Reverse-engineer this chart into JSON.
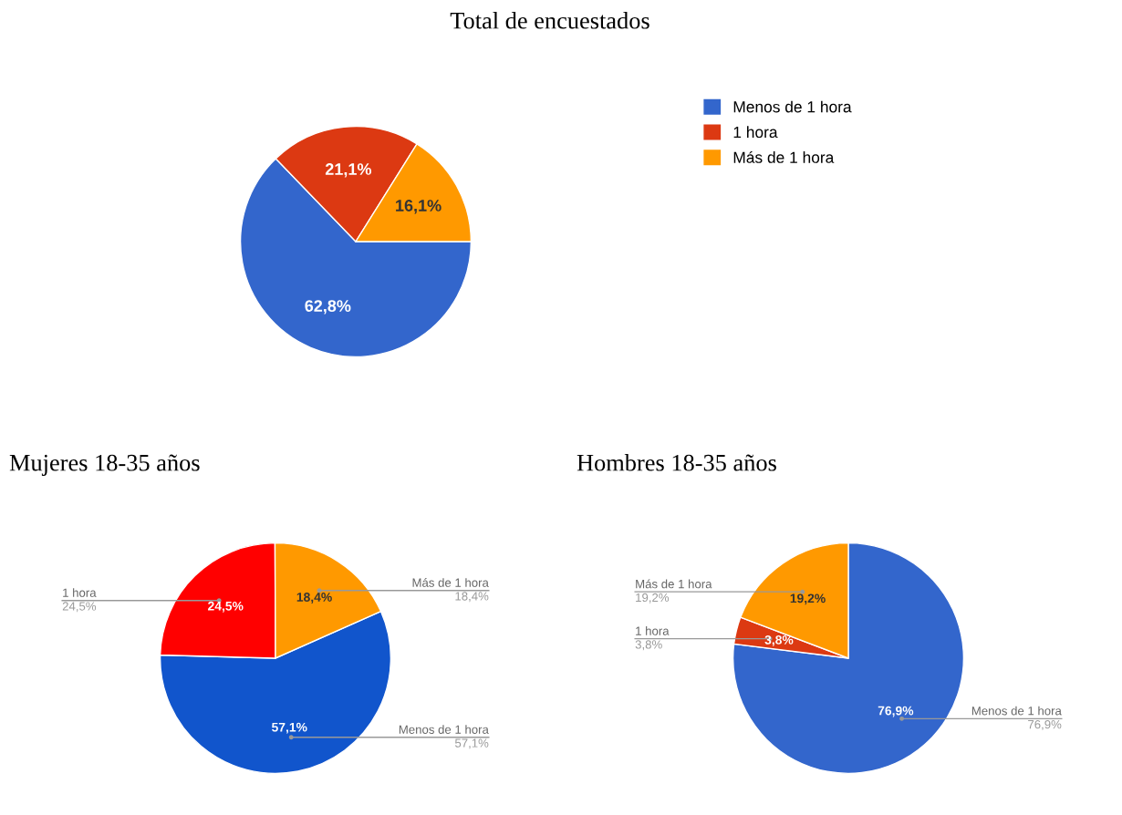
{
  "chart_data": [
    {
      "type": "pie",
      "title": "Total de encuestados",
      "categories": [
        "Menos de 1 hora",
        "1 hora",
        "Más de 1 hora"
      ],
      "values": [
        62.8,
        21.1,
        16.1
      ],
      "colors": [
        "#3366cc",
        "#dc3912",
        "#ff9900"
      ],
      "value_labels": [
        "62,8%",
        "21,1%",
        "16,1%"
      ],
      "legend": "right"
    },
    {
      "type": "pie",
      "title": "Mujeres 18-35 años",
      "categories": [
        "Menos de 1 hora",
        "1 hora",
        "Más de 1 hora"
      ],
      "values": [
        57.1,
        24.5,
        18.4
      ],
      "colors": [
        "#1155cc",
        "#ff0000",
        "#ff9900"
      ],
      "value_labels": [
        "57,1%",
        "24,5%",
        "18,4%"
      ]
    },
    {
      "type": "pie",
      "title": "Hombres 18-35 años",
      "categories": [
        "Menos de 1 hora",
        "1 hora",
        "Más de 1 hora"
      ],
      "values": [
        76.9,
        3.8,
        19.2
      ],
      "colors": [
        "#3366cc",
        "#dc3912",
        "#ff9900"
      ],
      "value_labels": [
        "76,9%",
        "3,8%",
        "19,2%"
      ]
    }
  ]
}
